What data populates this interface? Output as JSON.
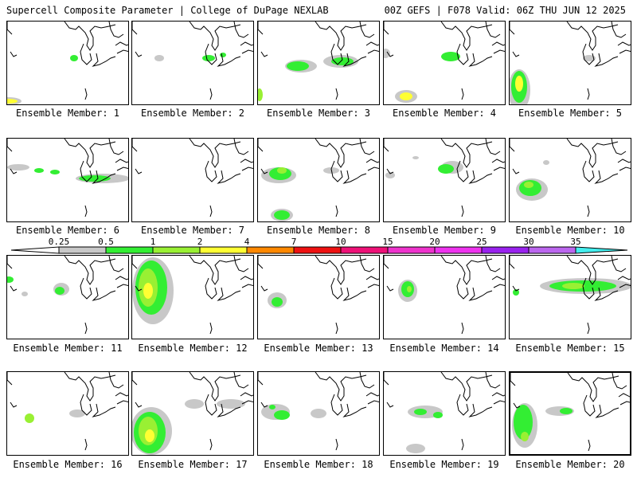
{
  "header": {
    "left": "Supercell Composite Parameter | College of DuPage NEXLAB",
    "right": "00Z GEFS | F078 Valid: 06Z THU JUN 12 2025"
  },
  "colorbar": {
    "labels": [
      "0.25",
      "0.5",
      "1",
      "2",
      "4",
      "7",
      "10",
      "15",
      "20",
      "25",
      "30",
      "35"
    ],
    "colors": [
      "#c8c8c8",
      "#33ee33",
      "#99f033",
      "#ffff33",
      "#ff8800",
      "#ee1111",
      "#ee1177",
      "#ee33cc",
      "#ee33ee",
      "#9922ee",
      "#bb66ee",
      "#44eeee"
    ]
  },
  "members": [
    {
      "label": "Ensemble Member: 1"
    },
    {
      "label": "Ensemble Member: 2"
    },
    {
      "label": "Ensemble Member: 3"
    },
    {
      "label": "Ensemble Member: 4"
    },
    {
      "label": "Ensemble Member: 5"
    },
    {
      "label": "Ensemble Member: 6"
    },
    {
      "label": "Ensemble Member: 7"
    },
    {
      "label": "Ensemble Member: 8"
    },
    {
      "label": "Ensemble Member: 9"
    },
    {
      "label": "Ensemble Member: 10"
    },
    {
      "label": "Ensemble Member: 11"
    },
    {
      "label": "Ensemble Member: 12"
    },
    {
      "label": "Ensemble Member: 13"
    },
    {
      "label": "Ensemble Member: 14"
    },
    {
      "label": "Ensemble Member: 15"
    },
    {
      "label": "Ensemble Member: 16"
    },
    {
      "label": "Ensemble Member: 17"
    },
    {
      "label": "Ensemble Member: 18"
    },
    {
      "label": "Ensemble Member: 19"
    },
    {
      "label": "Ensemble Member: 20"
    }
  ]
}
